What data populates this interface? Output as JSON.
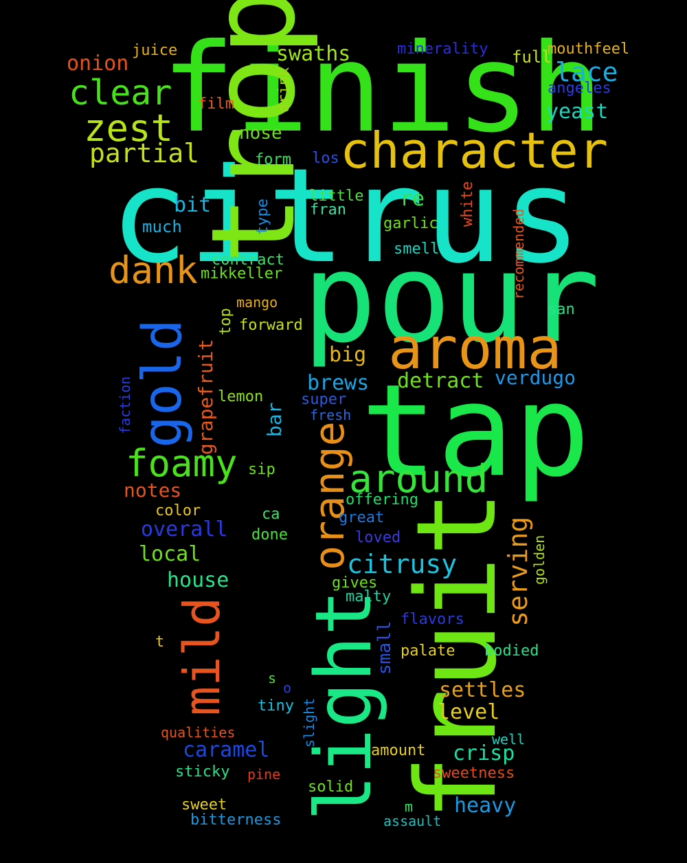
{
  "words": [
    {
      "text": "citrus",
      "color": "#17e3c8"
    },
    {
      "text": "finish",
      "color": "#35e21a"
    },
    {
      "text": "pour",
      "color": "#16e277"
    },
    {
      "text": "tropical",
      "color": "#7ee614"
    },
    {
      "text": "tap",
      "color": "#1ae84a"
    },
    {
      "text": "fruit",
      "color": "#6de614"
    },
    {
      "text": "light",
      "color": "#1ae887"
    },
    {
      "text": "aroma",
      "color": "#e89417"
    },
    {
      "text": "character",
      "color": "#e6c20f"
    },
    {
      "text": "gold",
      "color": "#1a66ea"
    },
    {
      "text": "mild",
      "color": "#e8541e"
    },
    {
      "text": "orange",
      "color": "#e88f18"
    },
    {
      "text": "zest",
      "color": "#b9e41b"
    },
    {
      "text": "clear",
      "color": "#48e21c"
    },
    {
      "text": "dank",
      "color": "#e6951a"
    },
    {
      "text": "foamy",
      "color": "#4ae21a"
    },
    {
      "text": "around",
      "color": "#36e43b"
    },
    {
      "text": "partial",
      "color": "#c5e21b"
    },
    {
      "text": "serving",
      "color": "#e89a18"
    },
    {
      "text": "citrusy",
      "color": "#1ac5e2"
    },
    {
      "text": "lace",
      "color": "#1aaee8"
    },
    {
      "text": "yeast",
      "color": "#1ad9c0"
    },
    {
      "text": "swaths",
      "color": "#9ee81a"
    },
    {
      "text": "onion",
      "color": "#e6521f"
    },
    {
      "text": "juice",
      "color": "#e6b418"
    },
    {
      "text": "minerality",
      "color": "#2a2ee0"
    },
    {
      "text": "full",
      "color": "#c8e01a"
    },
    {
      "text": "mouthfeel",
      "color": "#e8b41a"
    },
    {
      "text": "angeles",
      "color": "#2a3ee0"
    },
    {
      "text": "drink",
      "color": "#a2d81a"
    },
    {
      "text": "film",
      "color": "#e85a1e"
    },
    {
      "text": "nose",
      "color": "#6ee21c"
    },
    {
      "text": "form",
      "color": "#3ae25a"
    },
    {
      "text": "los",
      "color": "#2a52e2"
    },
    {
      "text": "bit",
      "color": "#1ab6e2"
    },
    {
      "text": "little",
      "color": "#4ae23a"
    },
    {
      "text": "re",
      "color": "#3ae24a"
    },
    {
      "text": "fran",
      "color": "#3ae2a6"
    },
    {
      "text": "white",
      "color": "#e84a1e"
    },
    {
      "text": "type",
      "color": "#1a8ee2"
    },
    {
      "text": "much",
      "color": "#1ab2e2"
    },
    {
      "text": "garlic",
      "color": "#6ee21a"
    },
    {
      "text": "recommended",
      "color": "#e8541a"
    },
    {
      "text": "smell",
      "color": "#1ad6c2"
    },
    {
      "text": "contract",
      "color": "#3ae26a"
    },
    {
      "text": "mikkeller",
      "color": "#6ee21a"
    },
    {
      "text": "mango",
      "color": "#e8b01a"
    },
    {
      "text": "san",
      "color": "#2ae28a"
    },
    {
      "text": "top",
      "color": "#b4e21a"
    },
    {
      "text": "forward",
      "color": "#c8e21a"
    },
    {
      "text": "big",
      "color": "#e8b81a"
    },
    {
      "text": "grapefruit",
      "color": "#e85a1e"
    },
    {
      "text": "brews",
      "color": "#1aa6e2"
    },
    {
      "text": "detract",
      "color": "#6ee21a"
    },
    {
      "text": "verdugo",
      "color": "#1a9ae8"
    },
    {
      "text": "faction",
      "color": "#2a3ee0"
    },
    {
      "text": "lemon",
      "color": "#8ee21a"
    },
    {
      "text": "bar",
      "color": "#1ab6e2"
    },
    {
      "text": "super",
      "color": "#2a5ae2"
    },
    {
      "text": "fresh",
      "color": "#2a6ae2"
    },
    {
      "text": "sip",
      "color": "#6ee21a"
    },
    {
      "text": "notes",
      "color": "#e8541e"
    },
    {
      "text": "offering",
      "color": "#1ae26a"
    },
    {
      "text": "color",
      "color": "#e8c81a"
    },
    {
      "text": "great",
      "color": "#1a7ae2"
    },
    {
      "text": "overall",
      "color": "#2a3ae2"
    },
    {
      "text": "ca",
      "color": "#3ae26a"
    },
    {
      "text": "done",
      "color": "#4ae23a"
    },
    {
      "text": "loved",
      "color": "#3a3ae2"
    },
    {
      "text": "golden",
      "color": "#b4e21a"
    },
    {
      "text": "local",
      "color": "#6ee21a"
    },
    {
      "text": "house",
      "color": "#2ae28a"
    },
    {
      "text": "gives",
      "color": "#6ee21a"
    },
    {
      "text": "malty",
      "color": "#1ad6a2"
    },
    {
      "text": "small",
      "color": "#2a52e2"
    },
    {
      "text": "flavors",
      "color": "#2a3ae2"
    },
    {
      "text": "t",
      "color": "#e8c81a"
    },
    {
      "text": "palate",
      "color": "#e8d21a"
    },
    {
      "text": "bodied",
      "color": "#2ae28a"
    },
    {
      "text": "s",
      "color": "#4ae23a"
    },
    {
      "text": "o",
      "color": "#2a3ee0"
    },
    {
      "text": "settles",
      "color": "#e8a01a"
    },
    {
      "text": "tiny",
      "color": "#1ac2e2"
    },
    {
      "text": "slight",
      "color": "#1a8ae2"
    },
    {
      "text": "level",
      "color": "#e8d01a"
    },
    {
      "text": "qualities",
      "color": "#e8541e"
    },
    {
      "text": "well",
      "color": "#1ad6c2"
    },
    {
      "text": "caramel",
      "color": "#1a4ae2"
    },
    {
      "text": "amount",
      "color": "#e8d01a"
    },
    {
      "text": "crisp",
      "color": "#1ae2a2"
    },
    {
      "text": "sticky",
      "color": "#2ae28a"
    },
    {
      "text": "pine",
      "color": "#e83a1a"
    },
    {
      "text": "sweetness",
      "color": "#e84a1e"
    },
    {
      "text": "solid",
      "color": "#6ee21a"
    },
    {
      "text": "heavy",
      "color": "#1a9ae2"
    },
    {
      "text": "m",
      "color": "#3ae26a"
    },
    {
      "text": "sweet",
      "color": "#e8d21a"
    },
    {
      "text": "bitterness",
      "color": "#1a9ae2"
    },
    {
      "text": "assault",
      "color": "#1ac2c2"
    }
  ]
}
